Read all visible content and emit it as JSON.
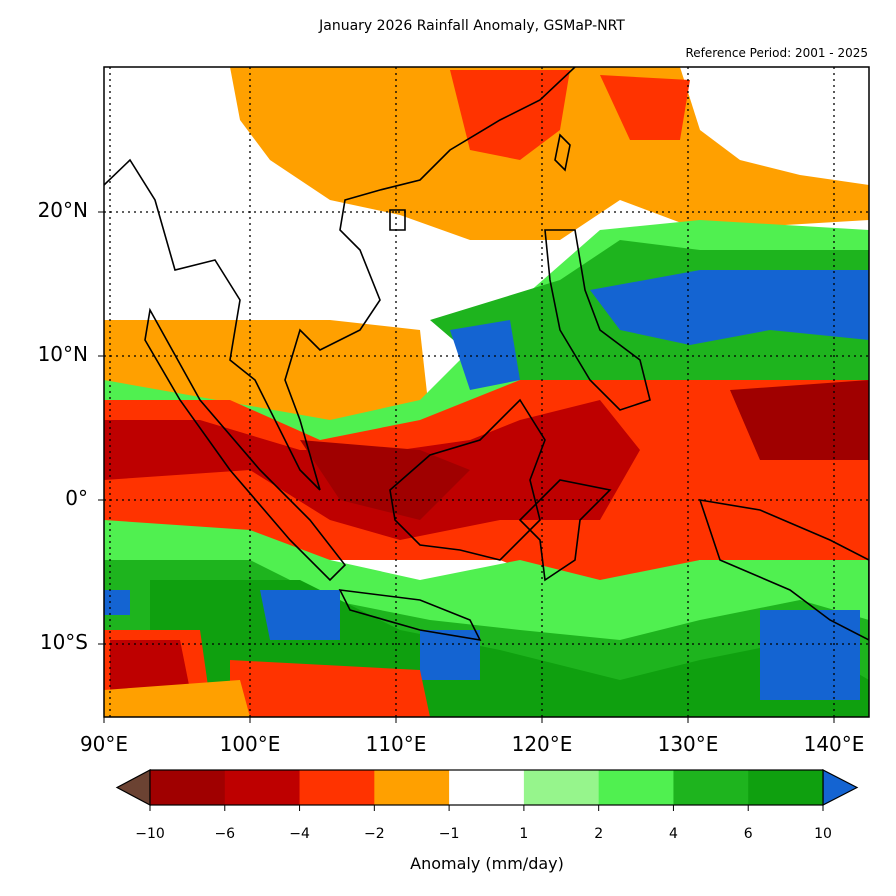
{
  "title": "January 2026 Rainfall Anomaly, GSMaP-NRT",
  "subtitle": "Reference Period: 2001 - 2025",
  "map": {
    "lat_labels": [
      "20°N",
      "10°N",
      "0°",
      "10°S"
    ],
    "lon_labels": [
      "90°E",
      "100°E",
      "110°E",
      "120°E",
      "130°E",
      "140°E"
    ],
    "extent": {
      "lon_min": 90,
      "lon_max": 142.4,
      "lat_min": -15,
      "lat_max": 30
    }
  },
  "colorbar": {
    "label": "Anomaly (mm/day)",
    "ticks": [
      "−10",
      "−6",
      "−4",
      "−2",
      "−1",
      "1",
      "2",
      "4",
      "6",
      "10"
    ],
    "under_color": "#6b4232",
    "over_color": "#1464d2",
    "colors": [
      "#a00000",
      "#be0000",
      "#ff3300",
      "#ffa000",
      "#ffffff",
      "#96f58c",
      "#50f050",
      "#1eb41e",
      "#0fa00f"
    ]
  }
}
